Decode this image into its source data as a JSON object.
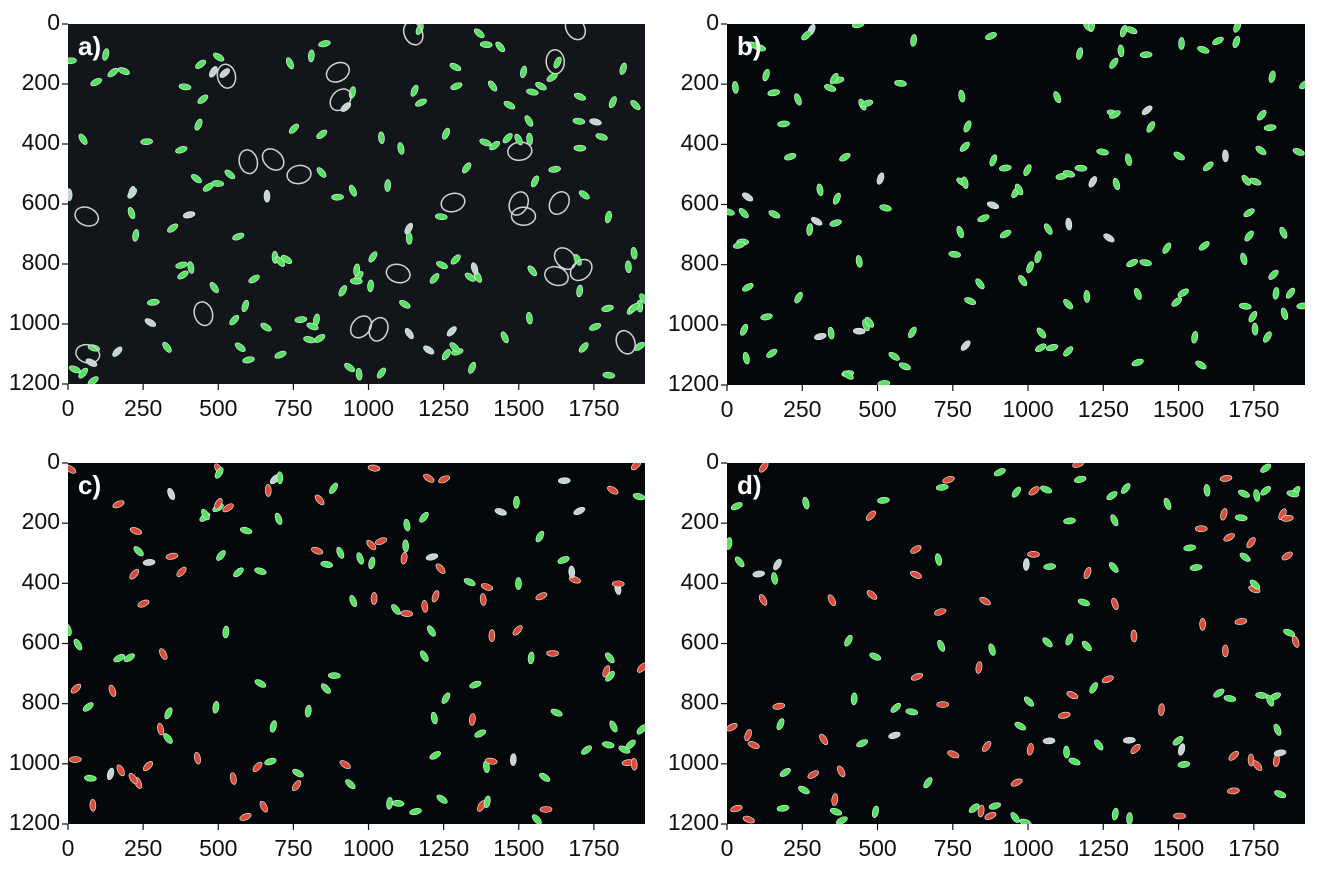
{
  "chart_data": [
    {
      "type": "image",
      "label": "a)",
      "xlim": [
        0,
        1920
      ],
      "ylim": [
        1200,
        0
      ],
      "xticks": [
        0,
        250,
        500,
        750,
        1000,
        1250,
        1500,
        1750
      ],
      "yticks": [
        0,
        200,
        400,
        600,
        800,
        1000,
        1200
      ]
    },
    {
      "type": "image",
      "label": "b)",
      "xlim": [
        0,
        1920
      ],
      "ylim": [
        1200,
        0
      ],
      "xticks": [
        0,
        250,
        500,
        750,
        1000,
        1250,
        1500,
        1750
      ],
      "yticks": [
        0,
        200,
        400,
        600,
        800,
        1000,
        1200
      ]
    },
    {
      "type": "image",
      "label": "c)",
      "xlim": [
        0,
        1920
      ],
      "ylim": [
        1200,
        0
      ],
      "xticks": [
        0,
        250,
        500,
        750,
        1000,
        1250,
        1500,
        1750
      ],
      "yticks": [
        0,
        200,
        400,
        600,
        800,
        1000,
        1200
      ]
    },
    {
      "type": "image",
      "label": "d)",
      "xlim": [
        0,
        1920
      ],
      "ylim": [
        1200,
        0
      ],
      "xticks": [
        0,
        250,
        500,
        750,
        1000,
        1250,
        1500,
        1750
      ],
      "yticks": [
        0,
        200,
        400,
        600,
        800,
        1000,
        1200
      ]
    }
  ]
}
